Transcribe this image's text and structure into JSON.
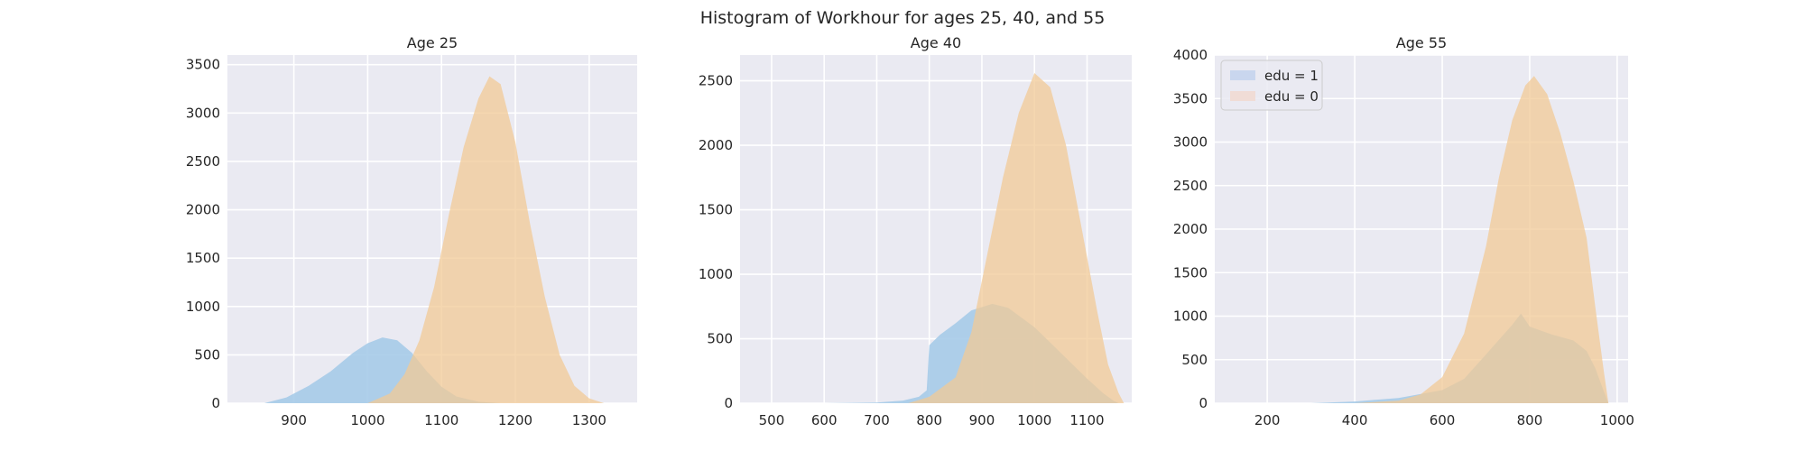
{
  "figure_title": "Histogram of Workhour for ages 25, 40, and 55",
  "colors": {
    "background": "#eaeaf2",
    "grid": "#ffffff",
    "edu1": "#a6cbe8",
    "edu0": "#f2c995",
    "overlap": "#b9bb92"
  },
  "legend": {
    "placement": "upper-left of third panel",
    "entries": [
      {
        "label": "edu = 1",
        "color": "#c9d6ee"
      },
      {
        "label": "edu = 0",
        "color": "#f0dcd6"
      }
    ]
  },
  "chart_data": [
    {
      "type": "area",
      "title": "Age 25",
      "xlim": [
        810,
        1365
      ],
      "ylim": [
        0,
        3600
      ],
      "xticks": [
        900,
        1000,
        1100,
        1200,
        1300
      ],
      "yticks": [
        0,
        500,
        1000,
        1500,
        2000,
        2500,
        3000,
        3500
      ],
      "series": [
        {
          "name": "edu = 1",
          "points": [
            [
              860,
              0
            ],
            [
              890,
              60
            ],
            [
              920,
              180
            ],
            [
              950,
              330
            ],
            [
              980,
              520
            ],
            [
              1000,
              620
            ],
            [
              1020,
              680
            ],
            [
              1040,
              650
            ],
            [
              1060,
              520
            ],
            [
              1080,
              330
            ],
            [
              1100,
              170
            ],
            [
              1120,
              70
            ],
            [
              1150,
              15
            ],
            [
              1180,
              0
            ]
          ]
        },
        {
          "name": "edu = 0",
          "points": [
            [
              1000,
              0
            ],
            [
              1030,
              100
            ],
            [
              1050,
              300
            ],
            [
              1070,
              650
            ],
            [
              1090,
              1200
            ],
            [
              1110,
              1950
            ],
            [
              1130,
              2650
            ],
            [
              1150,
              3150
            ],
            [
              1165,
              3380
            ],
            [
              1180,
              3300
            ],
            [
              1200,
              2700
            ],
            [
              1220,
              1850
            ],
            [
              1240,
              1100
            ],
            [
              1260,
              500
            ],
            [
              1280,
              180
            ],
            [
              1300,
              50
            ],
            [
              1320,
              0
            ]
          ]
        }
      ]
    },
    {
      "type": "area",
      "title": "Age 40",
      "xlim": [
        440,
        1185
      ],
      "ylim": [
        0,
        2700
      ],
      "xticks": [
        500,
        600,
        700,
        800,
        900,
        1000,
        1100
      ],
      "yticks": [
        0,
        500,
        1000,
        1500,
        2000,
        2500
      ],
      "series": [
        {
          "name": "edu = 1",
          "points": [
            [
              600,
              0
            ],
            [
              700,
              5
            ],
            [
              750,
              20
            ],
            [
              780,
              50
            ],
            [
              795,
              100
            ],
            [
              800,
              450
            ],
            [
              820,
              530
            ],
            [
              850,
              620
            ],
            [
              880,
              720
            ],
            [
              920,
              770
            ],
            [
              950,
              740
            ],
            [
              1000,
              590
            ],
            [
              1050,
              390
            ],
            [
              1100,
              190
            ],
            [
              1130,
              80
            ],
            [
              1150,
              20
            ],
            [
              1160,
              0
            ]
          ]
        },
        {
          "name": "edu = 0",
          "points": [
            [
              760,
              0
            ],
            [
              800,
              50
            ],
            [
              850,
              200
            ],
            [
              880,
              550
            ],
            [
              910,
              1150
            ],
            [
              940,
              1750
            ],
            [
              970,
              2250
            ],
            [
              1000,
              2560
            ],
            [
              1030,
              2450
            ],
            [
              1060,
              2000
            ],
            [
              1090,
              1350
            ],
            [
              1120,
              700
            ],
            [
              1140,
              300
            ],
            [
              1160,
              80
            ],
            [
              1170,
              0
            ]
          ]
        }
      ]
    },
    {
      "type": "area",
      "title": "Age 55",
      "xlim": [
        80,
        1025
      ],
      "ylim": [
        0,
        4000
      ],
      "xticks": [
        200,
        400,
        600,
        800,
        1000
      ],
      "yticks": [
        0,
        500,
        1000,
        1500,
        2000,
        2500,
        3000,
        3500,
        4000
      ],
      "series": [
        {
          "name": "edu = 1",
          "points": [
            [
              300,
              0
            ],
            [
              400,
              20
            ],
            [
              500,
              60
            ],
            [
              600,
              150
            ],
            [
              650,
              280
            ],
            [
              700,
              560
            ],
            [
              760,
              900
            ],
            [
              780,
              1030
            ],
            [
              800,
              880
            ],
            [
              850,
              790
            ],
            [
              900,
              720
            ],
            [
              930,
              600
            ],
            [
              950,
              400
            ],
            [
              970,
              130
            ],
            [
              980,
              0
            ]
          ]
        },
        {
          "name": "edu = 0",
          "points": [
            [
              400,
              0
            ],
            [
              500,
              30
            ],
            [
              550,
              100
            ],
            [
              600,
              300
            ],
            [
              650,
              800
            ],
            [
              700,
              1800
            ],
            [
              730,
              2600
            ],
            [
              760,
              3250
            ],
            [
              790,
              3650
            ],
            [
              810,
              3760
            ],
            [
              840,
              3550
            ],
            [
              870,
              3100
            ],
            [
              900,
              2550
            ],
            [
              930,
              1900
            ],
            [
              950,
              1100
            ],
            [
              970,
              350
            ],
            [
              980,
              0
            ]
          ]
        }
      ]
    }
  ]
}
